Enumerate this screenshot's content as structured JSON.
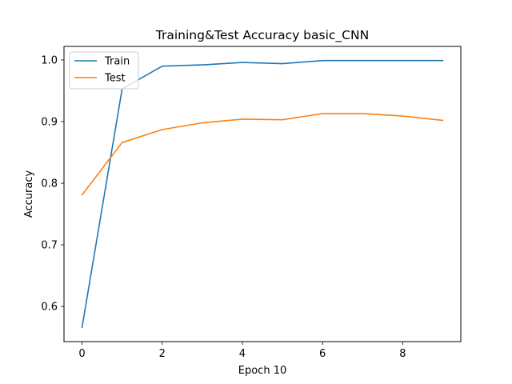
{
  "chart_data": {
    "type": "line",
    "title": "Training&Test Accuracy basic_CNN",
    "xlabel": "Epoch 10",
    "ylabel": "Accuracy",
    "x": [
      0,
      1,
      2,
      3,
      4,
      5,
      6,
      7,
      8,
      9
    ],
    "xlim": [
      -0.45,
      9.45
    ],
    "ylim": [
      0.543,
      1.022
    ],
    "xticks": [
      0,
      2,
      4,
      6,
      8
    ],
    "xtick_labels": [
      "0",
      "2",
      "4",
      "6",
      "8"
    ],
    "yticks": [
      0.6,
      0.7,
      0.8,
      0.9,
      1.0
    ],
    "ytick_labels": [
      "0.6",
      "0.7",
      "0.8",
      "0.9",
      "1.0"
    ],
    "grid": false,
    "legend_position": "top-left",
    "series": [
      {
        "name": "Train",
        "color": "#1f77b4",
        "values": [
          0.566,
          0.953,
          0.99,
          0.992,
          0.996,
          0.994,
          0.999,
          0.999,
          0.999,
          0.999
        ]
      },
      {
        "name": "Test",
        "color": "#ff7f0e",
        "values": [
          0.781,
          0.866,
          0.887,
          0.898,
          0.904,
          0.903,
          0.913,
          0.913,
          0.909,
          0.902
        ]
      }
    ]
  }
}
